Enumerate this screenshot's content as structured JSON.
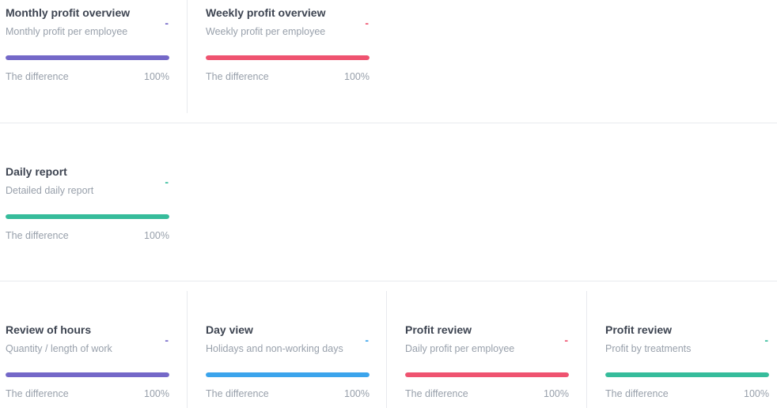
{
  "cards": [
    {
      "title": "Monthly profit overview",
      "subtitle": "Monthly profit per employee",
      "value": "-",
      "difference_label": "The difference",
      "difference_value": "100%",
      "progress": 1.0,
      "color": "#7468c8"
    },
    {
      "title": "Weekly profit overview",
      "subtitle": "Weekly profit per employee",
      "value": "-",
      "difference_label": "The difference",
      "difference_value": "100%",
      "progress": 1.0,
      "color": "#ef5370"
    },
    {
      "title": "Daily report",
      "subtitle": "Detailed daily report",
      "value": "-",
      "difference_label": "The difference",
      "difference_value": "100%",
      "progress": 1.0,
      "color": "#36bc9b"
    },
    {
      "title": "Review of hours",
      "subtitle": "Quantity / length of work",
      "value": "-",
      "difference_label": "The difference",
      "difference_value": "100%",
      "progress": 1.0,
      "color": "#7468c8"
    },
    {
      "title": "Day view",
      "subtitle": "Holidays and non-working days",
      "value": "-",
      "difference_label": "The difference",
      "difference_value": "100%",
      "progress": 1.0,
      "color": "#3ba4ec"
    },
    {
      "title": "Profit review",
      "subtitle": "Daily profit per employee",
      "value": "-",
      "difference_label": "The difference",
      "difference_value": "100%",
      "progress": 1.0,
      "color": "#ef5370"
    },
    {
      "title": "Profit review",
      "subtitle": "Profit by treatments",
      "value": "-",
      "difference_label": "The difference",
      "difference_value": "100%",
      "progress": 1.0,
      "color": "#36bc9b"
    }
  ]
}
